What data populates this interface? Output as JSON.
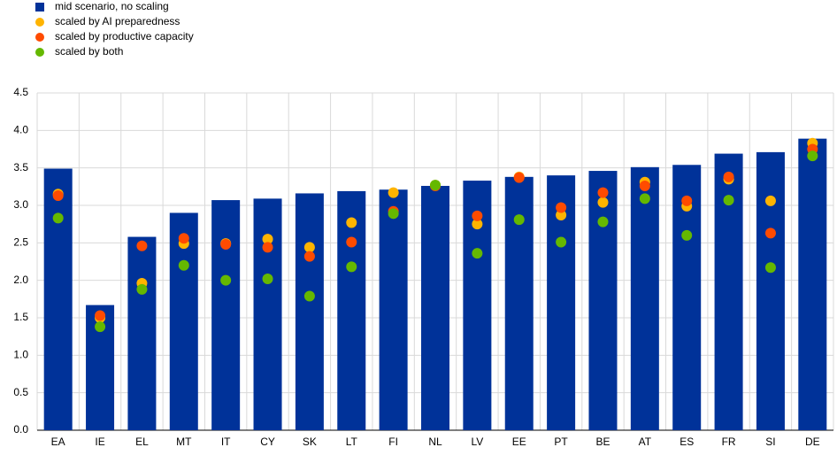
{
  "chart_data": {
    "type": "bar",
    "categories": [
      "EA",
      "IE",
      "EL",
      "MT",
      "IT",
      "CY",
      "SK",
      "LT",
      "FI",
      "NL",
      "LV",
      "EE",
      "PT",
      "BE",
      "AT",
      "ES",
      "FR",
      "SI",
      "DE"
    ],
    "series": [
      {
        "name": "mid scenario, no scaling",
        "color": "#003299",
        "marker": "bar",
        "values": [
          3.49,
          1.67,
          2.58,
          2.9,
          3.07,
          3.09,
          3.16,
          3.19,
          3.21,
          3.26,
          3.33,
          3.38,
          3.4,
          3.46,
          3.51,
          3.54,
          3.69,
          3.71,
          3.89
        ]
      },
      {
        "name": "scaled by AI preparedness",
        "color": "#ffb400",
        "marker": "dot",
        "values": [
          3.15,
          1.5,
          1.96,
          2.49,
          2.49,
          2.55,
          2.44,
          2.77,
          3.17,
          3.27,
          2.75,
          3.38,
          2.87,
          3.04,
          3.31,
          2.99,
          3.35,
          3.06,
          3.83
        ]
      },
      {
        "name": "scaled by productive capacity",
        "color": "#ff4b00",
        "marker": "dot",
        "values": [
          3.13,
          1.53,
          2.46,
          2.56,
          2.48,
          2.44,
          2.32,
          2.51,
          2.92,
          3.26,
          2.86,
          3.37,
          2.97,
          3.17,
          3.26,
          3.06,
          3.38,
          2.63,
          3.75
        ]
      },
      {
        "name": "scaled by both",
        "color": "#65b800",
        "marker": "dot",
        "values": [
          2.83,
          1.38,
          1.88,
          2.2,
          2.0,
          2.02,
          1.79,
          2.18,
          2.89,
          3.27,
          2.36,
          2.81,
          2.51,
          2.78,
          3.09,
          2.6,
          3.07,
          2.17,
          3.66
        ]
      }
    ],
    "ylim": [
      0,
      4.5
    ],
    "yticks": [
      {
        "value": 0,
        "label": "0.0"
      },
      0.5,
      {
        "value": 1,
        "label": "1.0"
      },
      1.5,
      {
        "value": 2,
        "label": "2.0"
      },
      2.5,
      {
        "value": 3,
        "label": "3.0"
      },
      3.5,
      {
        "value": 4,
        "label": "4.0"
      },
      4.5
    ],
    "grid": true,
    "legend": "top-left"
  }
}
